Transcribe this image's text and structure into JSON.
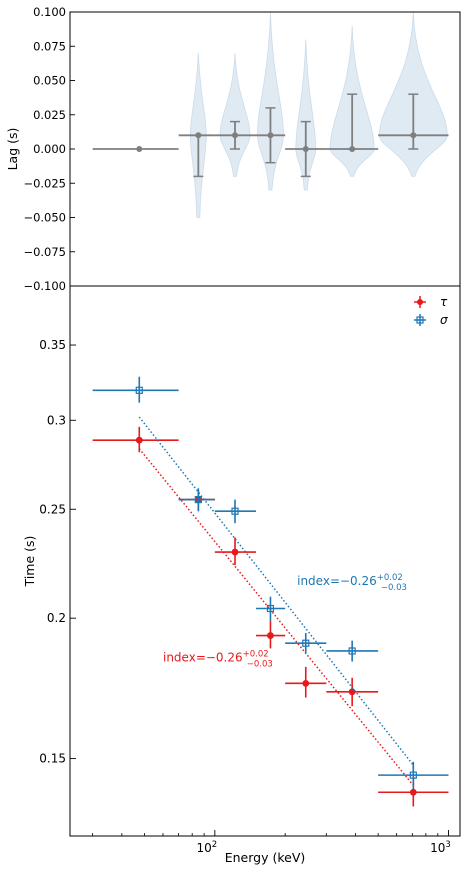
{
  "colors": {
    "tau": "#e8191c",
    "sigma": "#1f77b4",
    "lag": "#7f7f7f",
    "violin": "#c6d9ea"
  },
  "chart_data": [
    {
      "type": "scatter",
      "panel": "top",
      "xscale": "log",
      "xlim": [
        24,
        1120
      ],
      "ylim": [
        -0.1,
        0.1
      ],
      "ylabel": "Lag (s)",
      "yticks": [
        -0.1,
        -0.075,
        -0.05,
        -0.025,
        0.0,
        0.025,
        0.05,
        0.075,
        0.1
      ],
      "ytick_labels": [
        "−0.100",
        "−0.075",
        "−0.050",
        "−0.025",
        "0.000",
        "0.025",
        "0.050",
        "0.075",
        "0.100"
      ],
      "points": [
        {
          "x": 47.5,
          "xlo": 30,
          "xhi": 70,
          "y": 0.0,
          "ylo": 0.0,
          "yhi": 0.0,
          "vlo": 0.0,
          "vhi": 0.0,
          "vmax": 0
        },
        {
          "x": 85,
          "xlo": 70,
          "xhi": 100,
          "y": 0.01,
          "ylo": -0.02,
          "yhi": 0.01,
          "vlo": -0.05,
          "vhi": 0.07,
          "vmax": 8
        },
        {
          "x": 122,
          "xlo": 100,
          "xhi": 150,
          "y": 0.01,
          "ylo": 0.0,
          "yhi": 0.02,
          "vlo": -0.02,
          "vhi": 0.07,
          "vmax": 15
        },
        {
          "x": 173,
          "xlo": 150,
          "xhi": 200,
          "y": 0.01,
          "ylo": -0.01,
          "yhi": 0.03,
          "vlo": -0.03,
          "vhi": 0.1,
          "vmax": 13
        },
        {
          "x": 245,
          "xlo": 200,
          "xhi": 300,
          "y": 0.0,
          "ylo": -0.02,
          "yhi": 0.02,
          "vlo": -0.03,
          "vhi": 0.08,
          "vmax": 10
        },
        {
          "x": 387,
          "xlo": 300,
          "xhi": 500,
          "y": 0.0,
          "ylo": 0.0,
          "yhi": 0.04,
          "vlo": -0.02,
          "vhi": 0.09,
          "vmax": 22
        },
        {
          "x": 707,
          "xlo": 500,
          "xhi": 1000,
          "y": 0.01,
          "ylo": 0.0,
          "yhi": 0.04,
          "vlo": -0.02,
          "vhi": 0.1,
          "vmax": 34
        }
      ]
    },
    {
      "type": "scatter",
      "panel": "bottom",
      "xscale": "log",
      "yscale": "log",
      "xlim": [
        24,
        1120
      ],
      "ylim": [
        0.128,
        0.395
      ],
      "xlabel": "Energy (keV)",
      "ylabel": "Time (s)",
      "yticks": [
        0.15,
        0.2,
        0.25,
        0.3,
        0.35
      ],
      "ytick_labels": [
        "0.15",
        "0.2",
        "0.25",
        "0.3",
        "0.35"
      ],
      "xticks": [
        100,
        1000
      ],
      "xtick_labels": [
        "10^2",
        "10^3"
      ],
      "legend": {
        "position": "top-right",
        "entries": [
          "τ",
          "σ"
        ]
      },
      "series": [
        {
          "name": "τ",
          "marker": "circle",
          "points": [
            {
              "x": 47.5,
              "xlo": 30,
              "xhi": 70,
              "y": 0.288,
              "ylo": 0.281,
              "yhi": 0.296
            },
            {
              "x": 85,
              "xlo": 70,
              "xhi": 100,
              "y": 0.255,
              "ylo": 0.249,
              "yhi": 0.26
            },
            {
              "x": 122,
              "xlo": 100,
              "xhi": 150,
              "y": 0.229,
              "ylo": 0.223,
              "yhi": 0.236
            },
            {
              "x": 173,
              "xlo": 150,
              "xhi": 200,
              "y": 0.193,
              "ylo": 0.188,
              "yhi": 0.199
            },
            {
              "x": 245,
              "xlo": 200,
              "xhi": 300,
              "y": 0.175,
              "ylo": 0.17,
              "yhi": 0.181
            },
            {
              "x": 387,
              "xlo": 300,
              "xhi": 500,
              "y": 0.172,
              "ylo": 0.167,
              "yhi": 0.177
            },
            {
              "x": 707,
              "xlo": 500,
              "xhi": 1000,
              "y": 0.14,
              "ylo": 0.136,
              "yhi": 0.144
            }
          ],
          "fit": {
            "x": [
              47.5,
              707
            ],
            "y": [
              0.283,
              0.142
            ]
          },
          "annotation": {
            "text": "index=−0.26",
            "sup": "+0.02",
            "sub": "−0.03",
            "x": 60,
            "y": 0.183
          }
        },
        {
          "name": "σ",
          "marker": "square",
          "points": [
            {
              "x": 47.5,
              "xlo": 30,
              "xhi": 70,
              "y": 0.319,
              "ylo": 0.311,
              "yhi": 0.328
            },
            {
              "x": 85,
              "xlo": 70,
              "xhi": 100,
              "y": 0.255,
              "ylo": 0.249,
              "yhi": 0.261
            },
            {
              "x": 122,
              "xlo": 100,
              "xhi": 150,
              "y": 0.249,
              "ylo": 0.243,
              "yhi": 0.255
            },
            {
              "x": 173,
              "xlo": 150,
              "xhi": 200,
              "y": 0.204,
              "ylo": 0.199,
              "yhi": 0.209
            },
            {
              "x": 245,
              "xlo": 200,
              "xhi": 300,
              "y": 0.19,
              "ylo": 0.186,
              "yhi": 0.194
            },
            {
              "x": 387,
              "xlo": 300,
              "xhi": 500,
              "y": 0.187,
              "ylo": 0.183,
              "yhi": 0.191
            },
            {
              "x": 707,
              "xlo": 500,
              "xhi": 1000,
              "y": 0.145,
              "ylo": 0.141,
              "yhi": 0.149
            }
          ],
          "fit": {
            "x": [
              47.5,
              707
            ],
            "y": [
              0.302,
              0.148
            ]
          },
          "annotation": {
            "text": "index=−0.26",
            "sup": "+0.02",
            "sub": "−0.03",
            "x": 225,
            "y": 0.214
          }
        }
      ]
    }
  ]
}
